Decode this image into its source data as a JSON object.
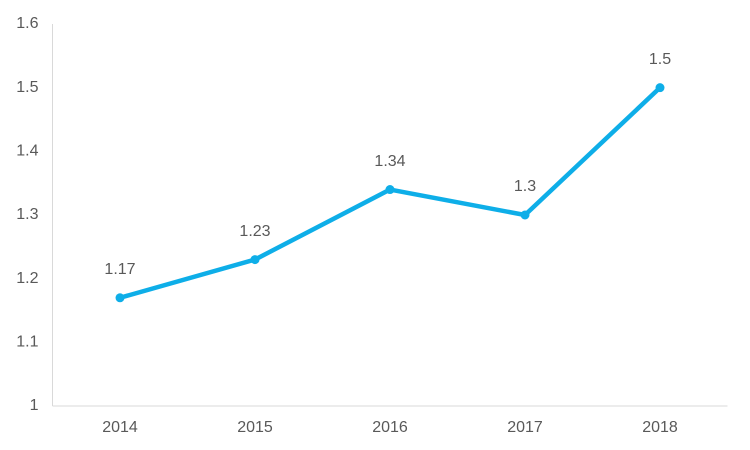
{
  "chart_data": {
    "type": "line",
    "categories": [
      "2014",
      "2015",
      "2016",
      "2017",
      "2018"
    ],
    "series": [
      {
        "name": "Series 1",
        "color": "#0eaee8",
        "values": [
          1.17,
          1.23,
          1.34,
          1.3,
          1.5
        ]
      }
    ],
    "ylim": [
      1,
      1.6
    ],
    "yticks": [
      1,
      1.1,
      1.2,
      1.3,
      1.4,
      1.5,
      1.6
    ],
    "grid": false
  }
}
